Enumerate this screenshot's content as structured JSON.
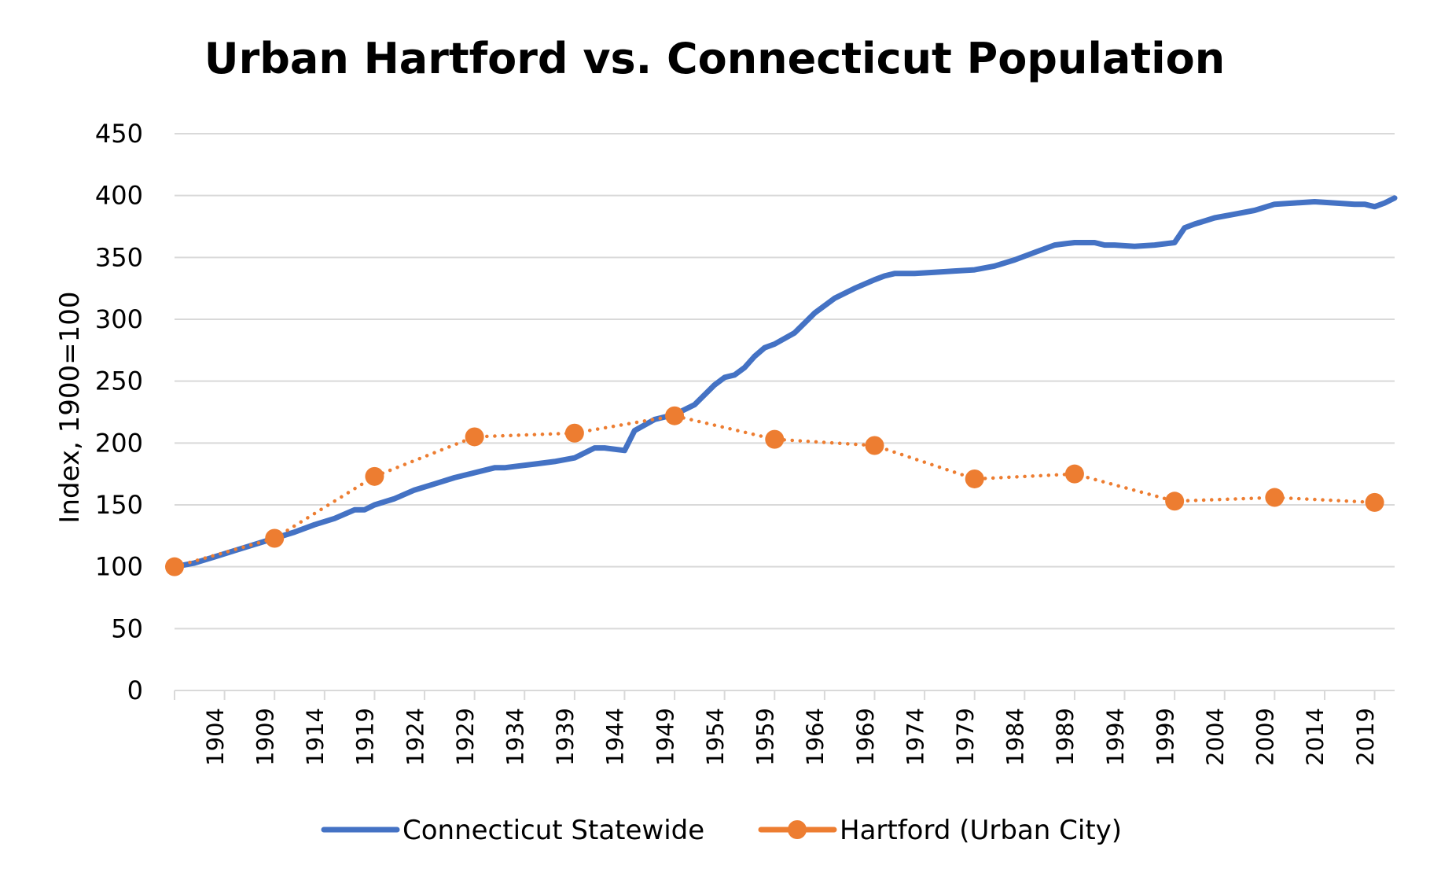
{
  "chart_data": {
    "type": "line",
    "title": "Urban Hartford vs. Connecticut Population",
    "ylabel": "Index, 1900=100",
    "xlabel": "",
    "ylim": [
      0,
      450
    ],
    "xlim": [
      1900,
      2022
    ],
    "yticks": [
      0,
      50,
      100,
      150,
      200,
      250,
      300,
      350,
      400,
      450
    ],
    "xtick_labels": [
      "1904",
      "1909",
      "1914",
      "1919",
      "1924",
      "1929",
      "1934",
      "1939",
      "1944",
      "1949",
      "1954",
      "1959",
      "1964",
      "1969",
      "1974",
      "1979",
      "1984",
      "1989",
      "1994",
      "1999",
      "2004",
      "2009",
      "2014",
      "2019"
    ],
    "grid": true,
    "legend_position": "bottom",
    "series": [
      {
        "name": "Connecticut Statewide",
        "color": "#4472C4",
        "style": "solid",
        "x": [
          1900,
          1902,
          1904,
          1906,
          1908,
          1910,
          1912,
          1914,
          1916,
          1918,
          1919,
          1920,
          1922,
          1924,
          1926,
          1928,
          1930,
          1932,
          1933,
          1934,
          1936,
          1938,
          1940,
          1942,
          1943,
          1945,
          1946,
          1948,
          1950,
          1952,
          1954,
          1955,
          1956,
          1957,
          1958,
          1959,
          1960,
          1962,
          1964,
          1966,
          1968,
          1970,
          1971,
          1972,
          1974,
          1976,
          1978,
          1980,
          1982,
          1984,
          1986,
          1988,
          1989,
          1990,
          1992,
          1993,
          1994,
          1996,
          1998,
          2000,
          2001,
          2002,
          2004,
          2006,
          2008,
          2010,
          2012,
          2014,
          2016,
          2018,
          2019,
          2020,
          2021,
          2022
        ],
        "values": [
          100,
          103,
          108,
          113,
          118,
          123,
          128,
          134,
          139,
          146,
          146,
          150,
          155,
          162,
          167,
          172,
          176,
          180,
          180,
          181,
          183,
          185,
          188,
          196,
          196,
          194,
          210,
          219,
          223,
          231,
          247,
          253,
          255,
          261,
          270,
          277,
          280,
          289,
          305,
          317,
          325,
          332,
          335,
          337,
          337,
          338,
          339,
          340,
          343,
          348,
          354,
          360,
          361,
          362,
          362,
          360,
          360,
          359,
          360,
          362,
          374,
          377,
          382,
          385,
          388,
          393,
          394,
          395,
          394,
          393,
          393,
          391,
          394,
          398
        ]
      },
      {
        "name": "Hartford (Urban City)",
        "color": "#ED7D31",
        "style": "dotted",
        "markers": true,
        "x": [
          1900,
          1910,
          1920,
          1930,
          1940,
          1950,
          1960,
          1970,
          1980,
          1990,
          2000,
          2010,
          2020
        ],
        "values": [
          100,
          123,
          173,
          205,
          208,
          222,
          203,
          198,
          171,
          175,
          153,
          156,
          152
        ]
      }
    ]
  }
}
